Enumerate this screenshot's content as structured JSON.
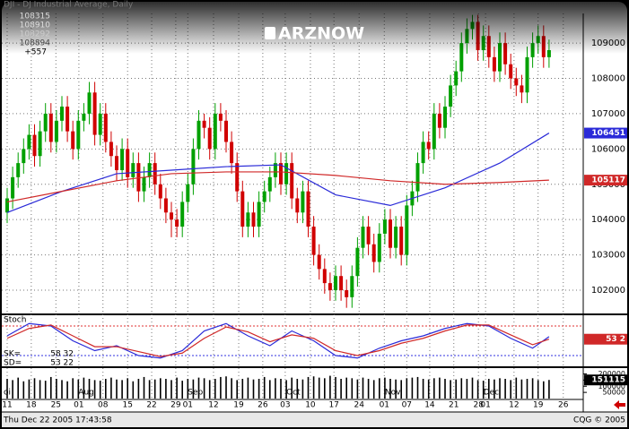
{
  "header": {
    "title": "DJI - DJ Industrial Average, Daily",
    "readouts": [
      "108315",
      "108910",
      "108292",
      "108894"
    ],
    "change": "+557"
  },
  "watermark": "ARZNOW",
  "chart_data": [
    {
      "type": "candlestick",
      "ohlc": [
        [
          104200,
          104900,
          103900,
          104600
        ],
        [
          104600,
          105500,
          104300,
          105200
        ],
        [
          105200,
          105900,
          104900,
          105600
        ],
        [
          105600,
          106300,
          105300,
          106000
        ],
        [
          106000,
          106700,
          105700,
          106400
        ],
        [
          106400,
          106700,
          105500,
          105800
        ],
        [
          105800,
          106800,
          105500,
          106500
        ],
        [
          106500,
          107300,
          106200,
          107000
        ],
        [
          107000,
          107300,
          105900,
          106200
        ],
        [
          106200,
          107100,
          105900,
          106800
        ],
        [
          106800,
          107500,
          106500,
          107200
        ],
        [
          107200,
          107500,
          106200,
          106500
        ],
        [
          106500,
          106800,
          105700,
          106000
        ],
        [
          106000,
          107100,
          105700,
          106800
        ],
        [
          106800,
          107300,
          106500,
          107000
        ],
        [
          107000,
          107900,
          106700,
          107600
        ],
        [
          107600,
          107900,
          106100,
          106400
        ],
        [
          106400,
          107300,
          106100,
          107000
        ],
        [
          107000,
          107300,
          105900,
          106200
        ],
        [
          106200,
          106500,
          105500,
          105800
        ],
        [
          105800,
          106100,
          105100,
          105400
        ],
        [
          105400,
          106300,
          105100,
          106000
        ],
        [
          106000,
          106300,
          104900,
          105200
        ],
        [
          105200,
          105900,
          104900,
          105600
        ],
        [
          105600,
          105900,
          104500,
          104800
        ],
        [
          104800,
          105500,
          104500,
          105200
        ],
        [
          105200,
          105900,
          104900,
          105600
        ],
        [
          105600,
          105900,
          104700,
          105000
        ],
        [
          105000,
          105300,
          104300,
          104600
        ],
        [
          104600,
          104900,
          103900,
          104200
        ],
        [
          104200,
          104500,
          103500,
          104000
        ],
        [
          104000,
          104300,
          103500,
          103800
        ],
        [
          103800,
          104800,
          103500,
          104500
        ],
        [
          104500,
          105300,
          104200,
          105000
        ],
        [
          105000,
          106300,
          104700,
          106000
        ],
        [
          106000,
          107100,
          105700,
          106800
        ],
        [
          106800,
          107000,
          106300,
          106600
        ],
        [
          106600,
          106900,
          105700,
          106000
        ],
        [
          106000,
          107300,
          105700,
          107000
        ],
        [
          107000,
          107300,
          106500,
          106800
        ],
        [
          106800,
          107100,
          105900,
          106200
        ],
        [
          106200,
          106500,
          105300,
          105600
        ],
        [
          105600,
          105900,
          104500,
          104800
        ],
        [
          104800,
          105100,
          103500,
          103800
        ],
        [
          103800,
          104500,
          103500,
          104200
        ],
        [
          104200,
          104500,
          103500,
          103800
        ],
        [
          103800,
          104800,
          103500,
          104500
        ],
        [
          104500,
          105100,
          104200,
          104800
        ],
        [
          104800,
          105500,
          104500,
          105200
        ],
        [
          105200,
          105900,
          104900,
          105600
        ],
        [
          105600,
          105900,
          104700,
          105000
        ],
        [
          105000,
          105900,
          104700,
          105600
        ],
        [
          105600,
          105900,
          104300,
          104600
        ],
        [
          104600,
          104900,
          103900,
          104200
        ],
        [
          104200,
          105100,
          103900,
          104800
        ],
        [
          104800,
          105100,
          103500,
          103800
        ],
        [
          103800,
          104100,
          102700,
          103000
        ],
        [
          103000,
          103300,
          102300,
          102600
        ],
        [
          102600,
          102900,
          101900,
          102200
        ],
        [
          102200,
          102500,
          101700,
          102000
        ],
        [
          102000,
          102700,
          101700,
          102400
        ],
        [
          102400,
          102700,
          101700,
          102000
        ],
        [
          102000,
          102300,
          101500,
          101800
        ],
        [
          101800,
          102700,
          101500,
          102400
        ],
        [
          102400,
          103500,
          102100,
          103200
        ],
        [
          103200,
          104100,
          102900,
          103800
        ],
        [
          103800,
          104100,
          103000,
          103300
        ],
        [
          103300,
          103600,
          102500,
          102800
        ],
        [
          102800,
          103900,
          102500,
          103600
        ],
        [
          103600,
          104300,
          103300,
          104000
        ],
        [
          104000,
          104300,
          102900,
          103200
        ],
        [
          103200,
          104100,
          102900,
          103800
        ],
        [
          103800,
          104100,
          102700,
          103000
        ],
        [
          103000,
          104700,
          102700,
          104400
        ],
        [
          104400,
          105100,
          104100,
          104800
        ],
        [
          104800,
          105900,
          104500,
          105600
        ],
        [
          105600,
          106500,
          105300,
          106200
        ],
        [
          106200,
          106500,
          105700,
          106000
        ],
        [
          106000,
          107300,
          105700,
          107000
        ],
        [
          107000,
          107300,
          106300,
          106600
        ],
        [
          106600,
          107500,
          106300,
          107200
        ],
        [
          107200,
          108100,
          106900,
          107800
        ],
        [
          107800,
          108500,
          107500,
          108200
        ],
        [
          108200,
          109300,
          107900,
          109000
        ],
        [
          109000,
          109700,
          108700,
          109400
        ],
        [
          109400,
          109800,
          109100,
          109600
        ],
        [
          109600,
          109800,
          108500,
          108800
        ],
        [
          108800,
          109500,
          108500,
          109200
        ],
        [
          109200,
          109500,
          108300,
          108600
        ],
        [
          108600,
          108900,
          107900,
          108200
        ],
        [
          108200,
          109300,
          107900,
          109000
        ],
        [
          109000,
          109300,
          108100,
          108400
        ],
        [
          108400,
          108700,
          107700,
          108000
        ],
        [
          108000,
          108300,
          107500,
          107800
        ],
        [
          107800,
          108100,
          107300,
          107600
        ],
        [
          107600,
          108900,
          107300,
          108600
        ],
        [
          108600,
          109300,
          108300,
          109000
        ],
        [
          109000,
          109500,
          108700,
          109200
        ],
        [
          109200,
          109500,
          108300,
          108600
        ],
        [
          108600,
          109100,
          108300,
          108800
        ]
      ],
      "up_color": "#00a000",
      "down_color": "#d00000",
      "ylim": [
        101340,
        109840
      ],
      "yticks": [
        102000,
        103000,
        104000,
        105000,
        106000,
        107000,
        108000,
        109000
      ],
      "grid": true,
      "series": [
        {
          "color": "#2a2ad8",
          "x": [
            0,
            10,
            20,
            30,
            40,
            50,
            60,
            70,
            80,
            90,
            99
          ],
          "values": [
            104200,
            104800,
            105300,
            105400,
            105500,
            105550,
            104700,
            104400,
            104900,
            105600,
            106451
          ]
        },
        {
          "color": "#d02828",
          "x": [
            0,
            10,
            20,
            30,
            40,
            50,
            60,
            70,
            80,
            90,
            99
          ],
          "values": [
            104500,
            104800,
            105100,
            105300,
            105350,
            105350,
            105250,
            105100,
            105000,
            105050,
            105117
          ]
        }
      ]
    },
    {
      "type": "line",
      "title": "Stoch",
      "ylim": [
        0,
        100
      ],
      "levels": [
        {
          "value": 80,
          "color": "#e03030"
        },
        {
          "value": 20,
          "color": "#3030e0"
        }
      ],
      "series": [
        {
          "name": "SK=",
          "readout": "58 32",
          "color": "#2a2ad8",
          "x": [
            0,
            4,
            8,
            12,
            16,
            20,
            24,
            28,
            32,
            36,
            40,
            44,
            48,
            52,
            56,
            60,
            64,
            68,
            72,
            76,
            80,
            84,
            88,
            92,
            96,
            99
          ],
          "values": [
            60,
            85,
            80,
            50,
            30,
            40,
            20,
            15,
            30,
            70,
            85,
            60,
            40,
            70,
            50,
            20,
            15,
            35,
            50,
            60,
            75,
            85,
            80,
            55,
            35,
            58.32
          ]
        },
        {
          "name": "SD=",
          "readout": "53 22",
          "color": "#d02828",
          "x": [
            0,
            4,
            8,
            12,
            16,
            20,
            24,
            28,
            32,
            36,
            40,
            44,
            48,
            52,
            56,
            60,
            64,
            68,
            72,
            76,
            80,
            84,
            88,
            92,
            96,
            99
          ],
          "values": [
            55,
            75,
            82,
            60,
            38,
            38,
            28,
            18,
            25,
            55,
            78,
            68,
            48,
            62,
            55,
            30,
            20,
            30,
            45,
            55,
            70,
            82,
            82,
            62,
            42,
            53.22
          ]
        }
      ],
      "last_label": "53 2"
    },
    {
      "type": "bar",
      "title": "oi",
      "color": "#000000",
      "ylim": [
        0,
        240000
      ],
      "yticks": [
        50000,
        100000,
        150000,
        200000
      ],
      "values": [
        160000,
        150000,
        170000,
        140000,
        155000,
        165000,
        150000,
        145000,
        175000,
        160000,
        150000,
        140000,
        165000,
        155000,
        170000,
        160000,
        150000,
        145000,
        160000,
        170000,
        155000,
        150000,
        165000,
        140000,
        160000,
        175000,
        150000,
        155000,
        165000,
        160000,
        150000,
        170000,
        145000,
        160000,
        155000,
        170000,
        165000,
        150000,
        160000,
        175000,
        180000,
        165000,
        150000,
        160000,
        170000,
        155000,
        160000,
        175000,
        150000,
        165000,
        160000,
        150000,
        170000,
        160000,
        155000,
        175000,
        180000,
        170000,
        165000,
        185000,
        175000,
        160000,
        170000,
        165000,
        155000,
        170000,
        160000,
        150000,
        165000,
        170000,
        160000,
        155000,
        150000,
        165000,
        170000,
        175000,
        160000,
        155000,
        165000,
        170000,
        160000,
        150000,
        155000,
        165000,
        160000,
        170000,
        150000,
        145000,
        160000,
        155000,
        165000,
        160000,
        150000,
        170000,
        155000,
        160000,
        165000,
        150000,
        140000,
        151115
      ]
    }
  ],
  "xaxis": {
    "months": [
      {
        "value": 13,
        "label": "Aug"
      },
      {
        "value": 33,
        "label": "Sep"
      },
      {
        "value": 51,
        "label": "Oct"
      },
      {
        "value": 69,
        "label": "Nov"
      },
      {
        "value": 87,
        "label": "Dec"
      }
    ],
    "days": [
      {
        "value": 0,
        "label": "11"
      },
      {
        "value": 4.4,
        "label": "18"
      },
      {
        "value": 8.9,
        "label": "25"
      },
      {
        "value": 13.1,
        "label": "01"
      },
      {
        "value": 17.5,
        "label": "08"
      },
      {
        "value": 22,
        "label": "15"
      },
      {
        "value": 26.4,
        "label": "22"
      },
      {
        "value": 30.8,
        "label": "29"
      },
      {
        "value": 33,
        "label": "01"
      },
      {
        "value": 37.7,
        "label": "12"
      },
      {
        "value": 42.3,
        "label": "19"
      },
      {
        "value": 46.7,
        "label": "26"
      },
      {
        "value": 50.8,
        "label": "03"
      },
      {
        "value": 55.4,
        "label": "10"
      },
      {
        "value": 59.7,
        "label": "17"
      },
      {
        "value": 64.3,
        "label": "24"
      },
      {
        "value": 68.9,
        "label": "01"
      },
      {
        "value": 73,
        "label": "07"
      },
      {
        "value": 77.2,
        "label": "14"
      },
      {
        "value": 81.6,
        "label": "21"
      },
      {
        "value": 86.1,
        "label": "28"
      },
      {
        "value": 87.4,
        "label": "01"
      },
      {
        "value": 92.6,
        "label": "12"
      },
      {
        "value": 97,
        "label": "19"
      },
      {
        "value": 101.6,
        "label": "26"
      }
    ]
  },
  "status": {
    "timestamp": "Thu Dec 22 2005 17:43:58",
    "copyright": "CQG © 2005"
  }
}
